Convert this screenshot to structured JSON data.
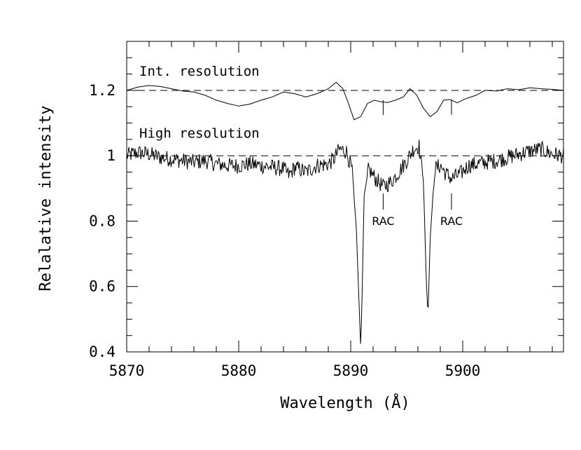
{
  "chart_data": {
    "type": "line",
    "title": "",
    "xlabel": "Wavelength (Å)",
    "ylabel": "Relalative intensity",
    "xlim": [
      5870,
      5909
    ],
    "ylim": [
      0.4,
      1.35
    ],
    "xticks": [
      5870,
      5880,
      5890,
      5900
    ],
    "xtick_labels": [
      "5870",
      "5880",
      "5890",
      "5900"
    ],
    "yticks": [
      0.4,
      0.6,
      0.8,
      1.0,
      1.2
    ],
    "ytick_labels": [
      "0.4",
      "0.6",
      "0.8",
      "1",
      "1.2"
    ],
    "grid": false,
    "legend": "none",
    "reference_lines": [
      {
        "y": 1.2,
        "style": "dashed"
      },
      {
        "y": 1.0,
        "style": "dashed"
      }
    ],
    "annotations": [
      {
        "text": "Int. resolution",
        "x": 5871,
        "y": 1.26
      },
      {
        "text": "High resolution",
        "x": 5871,
        "y": 1.07
      }
    ],
    "markers": [
      {
        "x": 5892.9,
        "y_from": 1.17,
        "y_to": 1.125
      },
      {
        "x": 5899.0,
        "y_from": 1.17,
        "y_to": 1.125
      },
      {
        "x": 5892.9,
        "y_from": 0.885,
        "y_to": 0.835,
        "label": "RAC"
      },
      {
        "x": 5899.0,
        "y_from": 0.885,
        "y_to": 0.835,
        "label": "RAC"
      }
    ],
    "series": [
      {
        "x": [
          5870,
          5871,
          5872,
          5873,
          5874,
          5875,
          5876,
          5877,
          5878,
          5879,
          5880,
          5881,
          5882,
          5883,
          5884,
          5885,
          5886,
          5887,
          5888,
          5888.7,
          5889.3,
          5889.8,
          5890.3,
          5890.9,
          5891.5,
          5892.1,
          5892.7,
          5893.3,
          5894,
          5894.7,
          5895.3,
          5895.9,
          5896.5,
          5897.1,
          5897.7,
          5898.3,
          5898.9,
          5899.5,
          5900.3,
          5901.2,
          5902,
          5903,
          5904,
          5905,
          5906,
          5907,
          5908,
          5909
        ],
        "values": [
          1.2,
          1.21,
          1.215,
          1.212,
          1.205,
          1.198,
          1.195,
          1.185,
          1.17,
          1.16,
          1.152,
          1.158,
          1.17,
          1.18,
          1.195,
          1.19,
          1.18,
          1.19,
          1.205,
          1.225,
          1.205,
          1.16,
          1.11,
          1.12,
          1.16,
          1.17,
          1.165,
          1.163,
          1.17,
          1.18,
          1.205,
          1.185,
          1.145,
          1.12,
          1.135,
          1.17,
          1.172,
          1.162,
          1.175,
          1.185,
          1.2,
          1.198,
          1.205,
          1.202,
          1.208,
          1.205,
          1.203,
          1.2
        ]
      },
      {
        "x": [
          5870,
          5871,
          5872,
          5873,
          5874,
          5875,
          5876,
          5877,
          5878,
          5879,
          5880,
          5881,
          5882,
          5883,
          5884,
          5884.5,
          5885,
          5886,
          5887,
          5888,
          5888.5,
          5889,
          5889.6,
          5890.1,
          5890.5,
          5890.8,
          5890.9,
          5891.0,
          5891.2,
          5891.6,
          5892.2,
          5892.9,
          5893.6,
          5894.3,
          5895,
          5895.6,
          5896.1,
          5896.5,
          5896.75,
          5896.9,
          5897.1,
          5897.5,
          5898,
          5898.5,
          5899,
          5899.8,
          5900.5,
          5901.3,
          5902,
          5903,
          5904,
          5905,
          5906,
          5907,
          5908,
          5909
        ],
        "values": [
          1.0,
          1.01,
          1.005,
          0.995,
          0.99,
          0.985,
          0.98,
          0.985,
          0.975,
          0.97,
          0.97,
          0.975,
          0.97,
          0.965,
          0.96,
          0.94,
          0.965,
          0.95,
          0.97,
          0.975,
          0.99,
          1.02,
          1.015,
          0.96,
          0.78,
          0.5,
          0.41,
          0.55,
          0.88,
          0.96,
          0.93,
          0.905,
          0.92,
          0.95,
          0.985,
          1.02,
          1.03,
          0.92,
          0.62,
          0.51,
          0.75,
          0.96,
          0.97,
          0.945,
          0.93,
          0.945,
          0.97,
          0.975,
          0.98,
          0.985,
          0.995,
          1.005,
          1.015,
          1.02,
          1.005,
          1.0
        ]
      }
    ]
  }
}
